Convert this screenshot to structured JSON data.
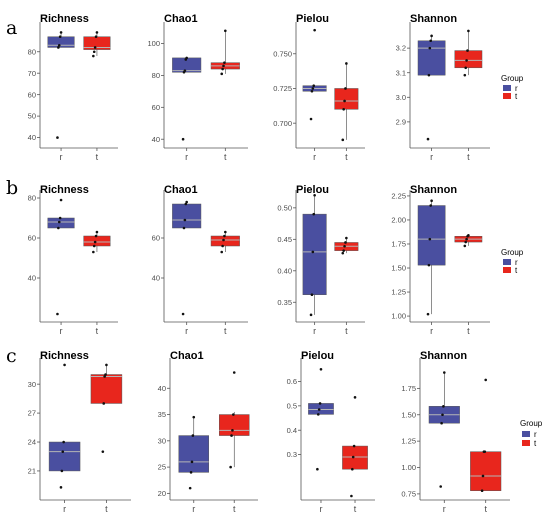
{
  "colors": {
    "r": "#4a4fa0",
    "t": "#e8261d",
    "median": "#b5b5b5",
    "axis": "#555555"
  },
  "rows": [
    {
      "label": "a",
      "legend": {
        "title": "Group",
        "items": [
          "r",
          "t"
        ]
      }
    },
    {
      "label": "b",
      "legend": {
        "title": "Group",
        "items": [
          "r",
          "t"
        ]
      }
    },
    {
      "label": "c",
      "legend": {
        "title": "Group",
        "items": [
          "r",
          "t"
        ]
      }
    }
  ],
  "chart_data": [
    {
      "type": "box",
      "row": 0,
      "col": 0,
      "title": "Richness",
      "categories": [
        "r",
        "t"
      ],
      "ylim": [
        37,
        92
      ],
      "yticks": [
        40,
        50,
        60,
        70,
        80
      ],
      "boxes": [
        {
          "q1": 82,
          "median": 83,
          "q3": 87,
          "lower": 82,
          "upper": 89
        },
        {
          "q1": 81,
          "median": 82,
          "q3": 87,
          "lower": 78,
          "upper": 89
        }
      ],
      "points": [
        [
          40,
          82,
          83,
          87,
          89
        ],
        [
          78,
          80,
          82,
          87,
          89
        ]
      ]
    },
    {
      "type": "box",
      "row": 0,
      "col": 1,
      "title": "Chao1",
      "categories": [
        "r",
        "t"
      ],
      "ylim": [
        37,
        111
      ],
      "yticks": [
        40,
        60,
        80,
        100
      ],
      "boxes": [
        {
          "q1": 82,
          "median": 83,
          "q3": 91,
          "lower": 82,
          "upper": 91
        },
        {
          "q1": 84,
          "median": 86,
          "q3": 88,
          "lower": 81,
          "upper": 108
        }
      ],
      "points": [
        [
          40,
          82,
          83,
          90,
          91
        ],
        [
          81,
          84,
          86,
          88,
          108
        ]
      ]
    },
    {
      "type": "box",
      "row": 0,
      "col": 2,
      "title": "Pielou",
      "categories": [
        "r",
        "t"
      ],
      "ylim": [
        0.685,
        0.77
      ],
      "yticks": [
        0.7,
        0.725,
        0.75
      ],
      "boxes": [
        {
          "q1": 0.723,
          "median": 0.725,
          "q3": 0.727,
          "lower": 0.723,
          "upper": 0.727
        },
        {
          "q1": 0.71,
          "median": 0.716,
          "q3": 0.725,
          "lower": 0.688,
          "upper": 0.743
        }
      ],
      "points": [
        [
          0.703,
          0.723,
          0.725,
          0.727,
          0.767
        ],
        [
          0.688,
          0.71,
          0.716,
          0.725,
          0.743
        ]
      ]
    },
    {
      "type": "box",
      "row": 0,
      "col": 3,
      "title": "Shannon",
      "categories": [
        "r",
        "t"
      ],
      "ylim": [
        2.81,
        3.29
      ],
      "yticks": [
        2.9,
        3.0,
        3.1,
        3.2
      ],
      "boxes": [
        {
          "q1": 3.09,
          "median": 3.2,
          "q3": 3.23,
          "lower": 3.09,
          "upper": 3.25
        },
        {
          "q1": 3.12,
          "median": 3.15,
          "q3": 3.19,
          "lower": 3.09,
          "upper": 3.27
        }
      ],
      "points": [
        [
          2.83,
          3.09,
          3.2,
          3.23,
          3.25
        ],
        [
          3.09,
          3.12,
          3.15,
          3.19,
          3.27
        ]
      ]
    },
    {
      "type": "box",
      "row": 1,
      "col": 0,
      "title": "Richness",
      "categories": [
        "r",
        "t"
      ],
      "ylim": [
        20,
        82
      ],
      "yticks": [
        40,
        60,
        80
      ],
      "boxes": [
        {
          "q1": 65,
          "median": 68,
          "q3": 70,
          "lower": 65,
          "upper": 70
        },
        {
          "q1": 56,
          "median": 58,
          "q3": 61,
          "lower": 53,
          "upper": 63
        }
      ],
      "points": [
        [
          22,
          65,
          68,
          70,
          79
        ],
        [
          53,
          56,
          58,
          61,
          63
        ]
      ]
    },
    {
      "type": "box",
      "row": 1,
      "col": 1,
      "title": "Chao1",
      "categories": [
        "r",
        "t"
      ],
      "ylim": [
        20,
        82
      ],
      "yticks": [
        40,
        60
      ],
      "boxes": [
        {
          "q1": 65,
          "median": 69,
          "q3": 77,
          "lower": 65,
          "upper": 78
        },
        {
          "q1": 56,
          "median": 59,
          "q3": 61,
          "lower": 53,
          "upper": 63
        }
      ],
      "points": [
        [
          22,
          65,
          69,
          77,
          78
        ],
        [
          53,
          56,
          59,
          61,
          63
        ]
      ]
    },
    {
      "type": "box",
      "row": 1,
      "col": 2,
      "title": "Pielou",
      "categories": [
        "r",
        "t"
      ],
      "ylim": [
        0.325,
        0.522
      ],
      "yticks": [
        0.35,
        0.4,
        0.45,
        0.5
      ],
      "boxes": [
        {
          "q1": 0.362,
          "median": 0.43,
          "q3": 0.49,
          "lower": 0.33,
          "upper": 0.52
        },
        {
          "q1": 0.432,
          "median": 0.439,
          "q3": 0.445,
          "lower": 0.428,
          "upper": 0.452
        }
      ],
      "points": [
        [
          0.33,
          0.362,
          0.43,
          0.49,
          0.52
        ],
        [
          0.428,
          0.432,
          0.439,
          0.445,
          0.452
        ]
      ]
    },
    {
      "type": "box",
      "row": 1,
      "col": 3,
      "title": "Shannon",
      "categories": [
        "r",
        "t"
      ],
      "ylim": [
        0.98,
        2.27
      ],
      "yticks": [
        1.0,
        1.25,
        1.5,
        1.75,
        2.0,
        2.25
      ],
      "boxes": [
        {
          "q1": 1.53,
          "median": 1.8,
          "q3": 2.15,
          "lower": 1.02,
          "upper": 2.2
        },
        {
          "q1": 1.77,
          "median": 1.8,
          "q3": 1.83,
          "lower": 1.73,
          "upper": 1.84
        }
      ],
      "points": [
        [
          1.02,
          1.53,
          1.8,
          2.15,
          2.2
        ],
        [
          1.73,
          1.77,
          1.8,
          1.83,
          1.84
        ]
      ]
    },
    {
      "type": "box",
      "row": 2,
      "col": 0,
      "title": "Richness",
      "categories": [
        "r",
        "t"
      ],
      "ylim": [
        18.4,
        32.3
      ],
      "yticks": [
        21,
        24,
        27,
        30
      ],
      "boxes": [
        {
          "q1": 21,
          "median": 23,
          "q3": 24,
          "lower": 21,
          "upper": 24
        },
        {
          "q1": 28,
          "median": 30.8,
          "q3": 31,
          "lower": 28,
          "upper": 32
        }
      ],
      "points": [
        [
          19.3,
          21,
          23,
          24,
          32
        ],
        [
          23,
          28,
          30.8,
          31,
          32
        ]
      ]
    },
    {
      "type": "box",
      "row": 2,
      "col": 1,
      "title": "Chao1",
      "categories": [
        "r",
        "t"
      ],
      "ylim": [
        19.5,
        45
      ],
      "yticks": [
        20,
        25,
        30,
        35,
        40
      ],
      "boxes": [
        {
          "q1": 24,
          "median": 26,
          "q3": 31,
          "lower": 24,
          "upper": 34.5
        },
        {
          "q1": 31,
          "median": 32,
          "q3": 35,
          "lower": 25,
          "upper": 35.5
        }
      ],
      "points": [
        [
          21,
          24,
          26,
          31,
          34.5
        ],
        [
          25,
          31,
          32,
          35,
          43
        ]
      ]
    },
    {
      "type": "box",
      "row": 2,
      "col": 2,
      "title": "Pielou",
      "categories": [
        "r",
        "t"
      ],
      "ylim": [
        0.13,
        0.68
      ],
      "yticks": [
        0.3,
        0.4,
        0.5,
        0.6
      ],
      "boxes": [
        {
          "q1": 0.465,
          "median": 0.485,
          "q3": 0.51,
          "lower": 0.465,
          "upper": 0.51
        },
        {
          "q1": 0.24,
          "median": 0.29,
          "q3": 0.335,
          "lower": 0.24,
          "upper": 0.335
        }
      ],
      "points": [
        [
          0.24,
          0.465,
          0.485,
          0.51,
          0.65
        ],
        [
          0.13,
          0.24,
          0.29,
          0.335,
          0.535
        ]
      ]
    },
    {
      "type": "box",
      "row": 2,
      "col": 3,
      "title": "Shannon",
      "categories": [
        "r",
        "t"
      ],
      "ylim": [
        0.73,
        2.0
      ],
      "yticks": [
        0.75,
        1.0,
        1.25,
        1.5,
        1.75
      ],
      "boxes": [
        {
          "q1": 1.42,
          "median": 1.5,
          "q3": 1.58,
          "lower": 1.42,
          "upper": 1.9
        },
        {
          "q1": 0.78,
          "median": 0.92,
          "q3": 1.15,
          "lower": 0.78,
          "upper": 1.15
        }
      ],
      "points": [
        [
          0.82,
          1.42,
          1.5,
          1.58,
          1.9
        ],
        [
          0.78,
          0.92,
          1.15,
          1.15,
          1.83
        ]
      ]
    }
  ]
}
